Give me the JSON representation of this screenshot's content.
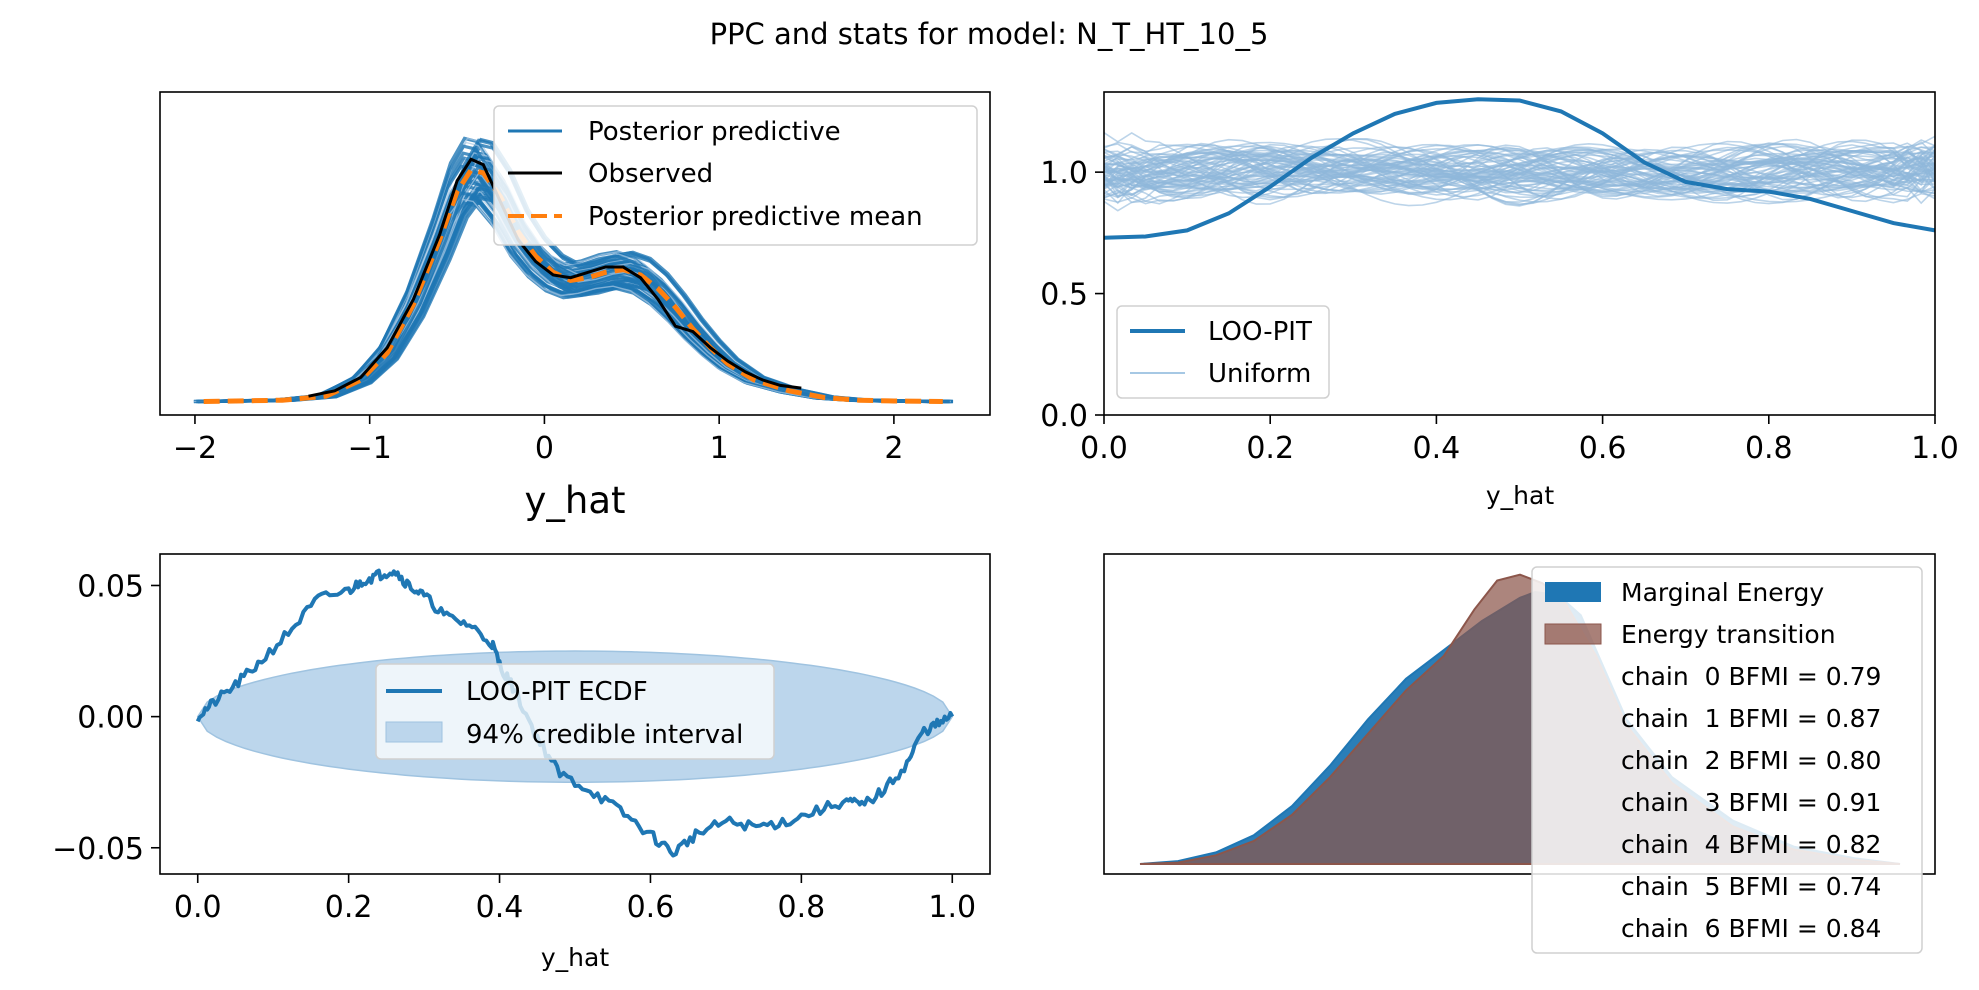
{
  "figure": {
    "title": "PPC and stats for model: N_T_HT_10_5"
  },
  "colors": {
    "posterior_predictive": "#1f77b4",
    "posterior_predictive_light": "#a6c8e4",
    "observed": "#000000",
    "pp_mean": "#ff7f0e",
    "uniform": "#8fb8db",
    "credible_interval": "#bcd6ec",
    "marginal_energy": "#1f77b4",
    "energy_transition": "#8c564b"
  },
  "chart_data": [
    {
      "type": "line",
      "name": "ppc",
      "title": "",
      "xlabel": "y_hat",
      "ylabel": "",
      "xlim": [
        -2.2,
        2.55
      ],
      "ylim": [
        -0.05,
        1.15
      ],
      "x_ticks": [
        -2,
        -1,
        0,
        1,
        2
      ],
      "x_tick_labels": [
        "−2",
        "−1",
        "0",
        "1",
        "2"
      ],
      "legend": [
        "Posterior predictive",
        "Observed",
        "Posterior predictive mean"
      ],
      "legend_position": "upper right",
      "series": [
        {
          "name": "Observed",
          "x": [
            -1.35,
            -1.2,
            -1.05,
            -0.9,
            -0.75,
            -0.6,
            -0.5,
            -0.42,
            -0.35,
            -0.25,
            -0.15,
            -0.05,
            0.05,
            0.15,
            0.25,
            0.35,
            0.45,
            0.55,
            0.65,
            0.75,
            0.85,
            0.95,
            1.05,
            1.15,
            1.25,
            1.35,
            1.47
          ],
          "y": [
            0.02,
            0.04,
            0.09,
            0.2,
            0.38,
            0.62,
            0.82,
            0.9,
            0.88,
            0.74,
            0.6,
            0.52,
            0.47,
            0.46,
            0.48,
            0.5,
            0.5,
            0.46,
            0.38,
            0.28,
            0.26,
            0.2,
            0.15,
            0.11,
            0.08,
            0.06,
            0.05
          ]
        },
        {
          "name": "Posterior predictive mean",
          "x": [
            -1.95,
            -1.5,
            -1.25,
            -1.05,
            -0.9,
            -0.75,
            -0.6,
            -0.5,
            -0.42,
            -0.35,
            -0.25,
            -0.15,
            -0.05,
            0.05,
            0.15,
            0.25,
            0.35,
            0.45,
            0.55,
            0.65,
            0.75,
            0.85,
            0.95,
            1.05,
            1.2,
            1.4,
            1.6,
            1.8,
            2.0,
            2.28
          ],
          "y": [
            0.0,
            0.005,
            0.02,
            0.08,
            0.18,
            0.36,
            0.6,
            0.78,
            0.86,
            0.85,
            0.76,
            0.63,
            0.54,
            0.48,
            0.45,
            0.46,
            0.48,
            0.49,
            0.47,
            0.42,
            0.35,
            0.27,
            0.2,
            0.14,
            0.08,
            0.04,
            0.015,
            0.005,
            0.002,
            0.0
          ]
        }
      ]
    },
    {
      "type": "line",
      "name": "loo_pit",
      "title": "",
      "xlabel": "y_hat",
      "ylabel": "",
      "xlim": [
        0.0,
        1.0
      ],
      "ylim": [
        0.0,
        1.33
      ],
      "x_ticks": [
        0.0,
        0.2,
        0.4,
        0.6,
        0.8,
        1.0
      ],
      "x_tick_labels": [
        "0.0",
        "0.2",
        "0.4",
        "0.6",
        "0.8",
        "1.0"
      ],
      "y_ticks": [
        0.0,
        0.5,
        1.0
      ],
      "y_tick_labels": [
        "0.0",
        "0.5",
        "1.0"
      ],
      "legend": [
        "LOO-PIT",
        "Uniform"
      ],
      "legend_position": "lower left",
      "series": [
        {
          "name": "LOO-PIT",
          "x": [
            0.0,
            0.05,
            0.1,
            0.15,
            0.2,
            0.25,
            0.3,
            0.35,
            0.4,
            0.45,
            0.5,
            0.55,
            0.6,
            0.65,
            0.7,
            0.75,
            0.8,
            0.85,
            0.9,
            0.95,
            1.0
          ],
          "y": [
            0.73,
            0.735,
            0.76,
            0.83,
            0.94,
            1.06,
            1.16,
            1.24,
            1.285,
            1.3,
            1.295,
            1.25,
            1.16,
            1.04,
            0.96,
            0.93,
            0.92,
            0.89,
            0.84,
            0.79,
            0.76
          ]
        }
      ]
    },
    {
      "type": "line",
      "name": "loo_pit_ecdf",
      "title": "",
      "xlabel": "y_hat",
      "ylabel": "",
      "xlim": [
        -0.05,
        1.05
      ],
      "ylim": [
        -0.06,
        0.062
      ],
      "x_ticks": [
        0.0,
        0.2,
        0.4,
        0.6,
        0.8,
        1.0
      ],
      "x_tick_labels": [
        "0.0",
        "0.2",
        "0.4",
        "0.6",
        "0.8",
        "1.0"
      ],
      "y_ticks": [
        -0.05,
        0.0,
        0.05
      ],
      "y_tick_labels": [
        "−0.05",
        "0.00",
        "0.05"
      ],
      "legend": [
        "LOO-PIT ECDF",
        "94% credible interval"
      ],
      "legend_position": "center",
      "interval_halfwidth_at_center": 0.025,
      "series": [
        {
          "name": "LOO-PIT ECDF",
          "x": [
            0.0,
            0.02,
            0.05,
            0.08,
            0.12,
            0.16,
            0.2,
            0.22,
            0.24,
            0.26,
            0.28,
            0.3,
            0.33,
            0.36,
            0.39,
            0.4,
            0.42,
            0.45,
            0.48,
            0.52,
            0.56,
            0.6,
            0.63,
            0.66,
            0.7,
            0.74,
            0.78,
            0.82,
            0.86,
            0.88,
            0.91,
            0.94,
            0.96,
            0.98,
            1.0
          ],
          "y": [
            0.0,
            0.005,
            0.012,
            0.02,
            0.032,
            0.045,
            0.048,
            0.052,
            0.054,
            0.056,
            0.05,
            0.046,
            0.038,
            0.035,
            0.028,
            0.02,
            0.01,
            -0.008,
            -0.022,
            -0.028,
            -0.036,
            -0.045,
            -0.052,
            -0.045,
            -0.04,
            -0.042,
            -0.04,
            -0.036,
            -0.032,
            -0.034,
            -0.028,
            -0.018,
            -0.006,
            -0.003,
            0.0
          ]
        }
      ]
    },
    {
      "type": "area",
      "name": "energy",
      "title": "",
      "xlabel": "",
      "ylabel": "",
      "legend": [
        "Marginal Energy",
        "Energy transition",
        "chain  0 BFMI = 0.79",
        "chain  1 BFMI = 0.87",
        "chain  2 BFMI = 0.80",
        "chain  3 BFMI = 0.91",
        "chain  4 BFMI = 0.82",
        "chain  5 BFMI = 0.74",
        "chain  6 BFMI = 0.84"
      ],
      "legend_position": "upper right",
      "bfmi": [
        {
          "chain": 0,
          "value": 0.79
        },
        {
          "chain": 1,
          "value": 0.87
        },
        {
          "chain": 2,
          "value": 0.8
        },
        {
          "chain": 3,
          "value": 0.91
        },
        {
          "chain": 4,
          "value": 0.82
        },
        {
          "chain": 5,
          "value": 0.74
        },
        {
          "chain": 6,
          "value": 0.84
        }
      ],
      "series": [
        {
          "name": "Marginal Energy",
          "x": [
            0.0,
            0.05,
            0.1,
            0.15,
            0.2,
            0.25,
            0.3,
            0.35,
            0.4,
            0.45,
            0.5,
            0.52,
            0.55,
            0.58,
            0.6,
            0.64,
            0.7,
            0.78,
            0.86,
            0.94,
            1.0
          ],
          "y": [
            0.0,
            0.01,
            0.04,
            0.1,
            0.2,
            0.34,
            0.5,
            0.64,
            0.74,
            0.84,
            0.92,
            0.94,
            0.93,
            0.86,
            0.74,
            0.5,
            0.3,
            0.15,
            0.06,
            0.02,
            0.0
          ]
        },
        {
          "name": "Energy transition",
          "x": [
            0.0,
            0.05,
            0.1,
            0.15,
            0.2,
            0.25,
            0.3,
            0.35,
            0.4,
            0.44,
            0.47,
            0.5,
            0.53,
            0.56,
            0.6,
            0.64,
            0.7,
            0.78,
            0.86,
            0.94,
            1.0
          ],
          "y": [
            0.0,
            0.005,
            0.03,
            0.08,
            0.17,
            0.3,
            0.45,
            0.6,
            0.72,
            0.88,
            0.98,
            1.0,
            0.97,
            0.9,
            0.72,
            0.48,
            0.28,
            0.13,
            0.05,
            0.015,
            0.0
          ]
        }
      ]
    }
  ]
}
